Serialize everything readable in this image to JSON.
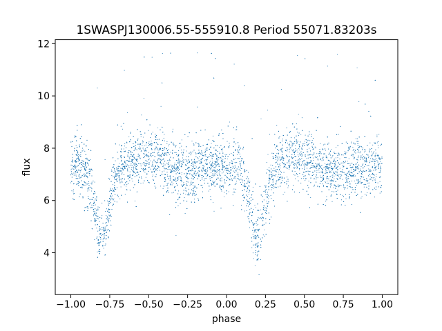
{
  "chart_data": {
    "type": "scatter",
    "title": "1SWASPJ130006.55-555910.8 Period 55071.83203s",
    "xlabel": "phase",
    "ylabel": "flux",
    "xlim": [
      -1.1,
      1.1
    ],
    "ylim": [
      2.4,
      12.15
    ],
    "xticks": [
      -1.0,
      -0.75,
      -0.5,
      -0.25,
      0.0,
      0.25,
      0.5,
      0.75,
      1.0
    ],
    "xtick_labels": [
      "−1.00",
      "−0.75",
      "−0.50",
      "−0.25",
      "0.00",
      "0.25",
      "0.50",
      "0.75",
      "1.00"
    ],
    "yticks": [
      4,
      6,
      8,
      10,
      12
    ],
    "ytick_labels": [
      "4",
      "6",
      "8",
      "10",
      "12"
    ],
    "grid": false,
    "marker_color": "#1f77b4",
    "series": [
      {
        "phase_range": [
          -1.0,
          1.0
        ],
        "baseline_flux": 7.3,
        "scatter_flux": 0.55,
        "primary_minimum": {
          "phase": [
            -0.8,
            0.2
          ],
          "flux": 4.6
        },
        "secondary_bump": {
          "phase": [
            -0.5,
            0.5
          ],
          "flux": 7.7
        },
        "trough": {
          "phase": [
            -0.3,
            0.7
          ],
          "flux": 7.0
        },
        "outlier_range": [
          2.9,
          11.7
        ]
      }
    ]
  }
}
